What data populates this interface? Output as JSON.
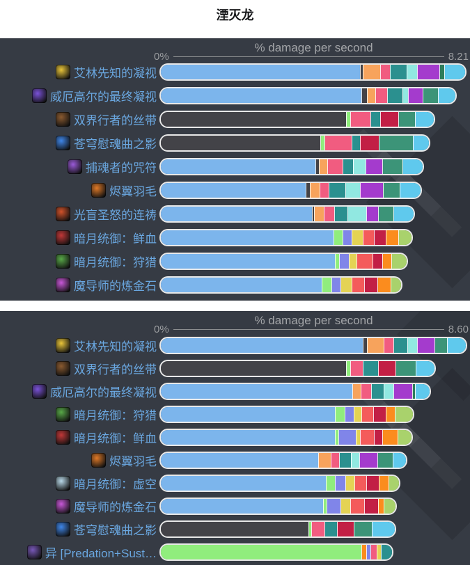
{
  "page": {
    "title": "湮灭龙"
  },
  "colors": {
    "panel_bg": "#363b44",
    "label_blue": "#6aa7e0",
    "axis_gray": "#9b9da0",
    "bar_border": "#e8e8e8",
    "title_color": "#17181a"
  },
  "palette": {
    "blue": "#7cb5ec",
    "dark": "#434348",
    "lgreen": "#90ed7d",
    "orange": "#f7a35c",
    "peri": "#8085e9",
    "pink": "#f15c80",
    "yellow": "#e4d354",
    "teal": "#2b908f",
    "salmon": "#f45b5b",
    "aqua": "#91e8e1",
    "purple": "#a43bcd",
    "forest": "#2e7d5b",
    "seagreen": "#3c9478",
    "crimson": "#c21f45",
    "borange": "#fb8c1e",
    "ygreen": "#a9d26c",
    "cyan": "#5fc9ed"
  },
  "chart_data": [
    {
      "type": "bar",
      "orientation": "horizontal-stacked",
      "title": "% damage per second",
      "axis_min": "0%",
      "axis_max": "8.21",
      "xlim": [
        0,
        8.21
      ],
      "legend": false,
      "rows": [
        {
          "label": "艾林先知的凝视",
          "icon": "seer-gaze",
          "icon_color": "#e9c53a",
          "value": 8.21,
          "segments": [
            [
              "blue",
              66.0
            ],
            [
              "dark",
              0.7
            ],
            [
              "orange",
              5.7
            ],
            [
              "pink",
              2.9
            ],
            [
              "teal",
              5.3
            ],
            [
              "aqua",
              3.2
            ],
            [
              "purple",
              7.2
            ],
            [
              "forest",
              1.4
            ],
            [
              "cyan",
              6.6
            ]
          ]
        },
        {
          "label": "威厄高尔的最终凝视",
          "icon": "vexgor-final-gaze",
          "icon_color": "#7a52d8",
          "value": 7.9,
          "segments": [
            [
              "blue",
              66.5
            ],
            [
              "dark",
              1.6
            ],
            [
              "orange",
              2.6
            ],
            [
              "pink",
              3.8
            ],
            [
              "teal",
              4.8
            ],
            [
              "aqua",
              1.5
            ],
            [
              "purple",
              4.8
            ],
            [
              "seagreen",
              4.7
            ],
            [
              "cyan",
              5.6
            ]
          ]
        },
        {
          "label": "双界行者的丝带",
          "icon": "worldwalker-ribbon",
          "icon_color": "#8a5a30",
          "value": 7.36,
          "segments": [
            [
              "dark",
              61.3
            ],
            [
              "lgreen",
              1.1
            ],
            [
              "pink",
              6.4
            ],
            [
              "teal",
              3.1
            ],
            [
              "crimson",
              5.6
            ],
            [
              "seagreen",
              5.4
            ],
            [
              "cyan",
              6.0
            ]
          ]
        },
        {
          "label": "苍穹慰魂曲之影",
          "icon": "requiem-shadow",
          "icon_color": "#3f86e8",
          "value": 7.18,
          "segments": [
            [
              "dark",
              52.8
            ],
            [
              "lgreen",
              1.2
            ],
            [
              "pink",
              8.6
            ],
            [
              "teal",
              2.5
            ],
            [
              "crimson",
              6.0
            ],
            [
              "seagreen",
              11.2
            ],
            [
              "cyan",
              5.0
            ]
          ]
        },
        {
          "label": "捕魂者的咒符",
          "icon": "soulcatcher-charm",
          "icon_color": "#9a5ad8",
          "value": 7.06,
          "segments": [
            [
              "blue",
              51.5
            ],
            [
              "dark",
              0.8
            ],
            [
              "orange",
              2.7
            ],
            [
              "pink",
              4.8
            ],
            [
              "teal",
              3.2
            ],
            [
              "aqua",
              3.9
            ],
            [
              "purple",
              5.4
            ],
            [
              "seagreen",
              6.4
            ],
            [
              "cyan",
              6.6
            ]
          ]
        },
        {
          "label": "烬翼羽毛",
          "icon": "emberwing-feather",
          "icon_color": "#e07a28",
          "value": 6.99,
          "segments": [
            [
              "blue",
              48.2
            ],
            [
              "dark",
              1.1
            ],
            [
              "orange",
              3.1
            ],
            [
              "pink",
              2.8
            ],
            [
              "teal",
              5.3
            ],
            [
              "aqua",
              4.7
            ],
            [
              "purple",
              7.3
            ],
            [
              "seagreen",
              5.3
            ],
            [
              "cyan",
              6.8
            ]
          ]
        },
        {
          "label": "光盲圣怒的连祷",
          "icon": "litany-of-wrath",
          "icon_color": "#d0522a",
          "value": 6.81,
          "segments": [
            [
              "blue",
              50.2
            ],
            [
              "dark",
              0.6
            ],
            [
              "orange",
              3.0
            ],
            [
              "pink",
              3.3
            ],
            [
              "teal",
              4.1
            ],
            [
              "aqua",
              6.1
            ],
            [
              "purple",
              3.7
            ],
            [
              "seagreen",
              4.9
            ],
            [
              "cyan",
              6.4
            ]
          ]
        },
        {
          "label": "暗月统御：鲜血",
          "icon": "darkmoon-blood",
          "icon_color": "#c03838",
          "value": 6.78,
          "segments": [
            [
              "blue",
              57.4
            ],
            [
              "lgreen",
              2.7
            ],
            [
              "peri",
              2.7
            ],
            [
              "yellow",
              3.6
            ],
            [
              "salmon",
              3.4
            ],
            [
              "crimson",
              3.8
            ],
            [
              "borange",
              3.8
            ],
            [
              "ygreen",
              4.3
            ]
          ]
        },
        {
          "label": "暗月统御：狩猎",
          "icon": "darkmoon-hunt",
          "icon_color": "#58a848",
          "value": 6.7,
          "segments": [
            [
              "blue",
              57.8
            ],
            [
              "lgreen",
              1.2
            ],
            [
              "peri",
              3.1
            ],
            [
              "yellow",
              2.3
            ],
            [
              "salmon",
              5.1
            ],
            [
              "crimson",
              2.9
            ],
            [
              "borange",
              2.9
            ],
            [
              "ygreen",
              4.8
            ]
          ]
        },
        {
          "label": "魔导师的炼金石",
          "icon": "alchemist-stone",
          "icon_color": "#c858d8",
          "value": 6.49,
          "segments": [
            [
              "blue",
              53.4
            ],
            [
              "lgreen",
              3.1
            ],
            [
              "peri",
              2.8
            ],
            [
              "yellow",
              3.4
            ],
            [
              "salmon",
              3.9
            ],
            [
              "crimson",
              4.2
            ],
            [
              "borange",
              4.2
            ],
            [
              "ygreen",
              3.2
            ]
          ]
        }
      ]
    },
    {
      "type": "bar",
      "orientation": "horizontal-stacked",
      "title": "% damage per second",
      "axis_min": "0%",
      "axis_max": "8.60",
      "xlim": [
        0,
        8.6
      ],
      "legend": false,
      "rows": [
        {
          "label": "艾林先知的凝视",
          "icon": "seer-gaze",
          "icon_color": "#e9c53a",
          "value": 8.6,
          "segments": [
            [
              "blue",
              67.0
            ],
            [
              "dark",
              1.1
            ],
            [
              "orange",
              5.4
            ],
            [
              "pink",
              3.0
            ],
            [
              "teal",
              4.3
            ],
            [
              "aqua",
              3.1
            ],
            [
              "purple",
              5.5
            ],
            [
              "seagreen",
              3.9
            ],
            [
              "cyan",
              6.0
            ]
          ]
        },
        {
          "label": "双界行者的丝带",
          "icon": "worldwalker-ribbon",
          "icon_color": "#8a5a30",
          "value": 7.73,
          "segments": [
            [
              "dark",
              61.2
            ],
            [
              "lgreen",
              1.2
            ],
            [
              "pink",
              4.0
            ],
            [
              "teal",
              4.8
            ],
            [
              "crimson",
              5.4
            ],
            [
              "seagreen",
              6.5
            ],
            [
              "cyan",
              6.0
            ]
          ]
        },
        {
          "label": "威厄高尔的最终凝视",
          "icon": "vexgor-final-gaze",
          "icon_color": "#7a52d8",
          "value": 7.6,
          "segments": [
            [
              "blue",
              63.6
            ],
            [
              "orange",
              2.4
            ],
            [
              "pink",
              3.3
            ],
            [
              "teal",
              3.8
            ],
            [
              "aqua",
              3.0
            ],
            [
              "purple",
              6.0
            ],
            [
              "forest",
              0.9
            ],
            [
              "cyan",
              4.6
            ]
          ]
        },
        {
          "label": "暗月统御：狩猎",
          "icon": "darkmoon-hunt",
          "icon_color": "#58a848",
          "value": 7.14,
          "segments": [
            [
              "blue",
              57.9
            ],
            [
              "lgreen",
              2.8
            ],
            [
              "peri",
              3.0
            ],
            [
              "yellow",
              2.1
            ],
            [
              "salmon",
              3.7
            ],
            [
              "crimson",
              4.0
            ],
            [
              "borange",
              2.8
            ],
            [
              "ygreen",
              5.7
            ]
          ]
        },
        {
          "label": "暗月统御：鲜血",
          "icon": "darkmoon-blood",
          "icon_color": "#c03838",
          "value": 7.06,
          "segments": [
            [
              "blue",
              57.9
            ],
            [
              "lgreen",
              0.9
            ],
            [
              "peri",
              5.5
            ],
            [
              "yellow",
              1.1
            ],
            [
              "salmon",
              4.4
            ],
            [
              "crimson",
              2.5
            ],
            [
              "borange",
              5.0
            ],
            [
              "ygreen",
              4.4
            ]
          ]
        },
        {
          "label": "烬翼羽毛",
          "icon": "emberwing-feather",
          "icon_color": "#e07a28",
          "value": 6.95,
          "segments": [
            [
              "blue",
              52.2
            ],
            [
              "orange",
              4.0
            ],
            [
              "pink",
              2.5
            ],
            [
              "teal",
              3.7
            ],
            [
              "aqua",
              2.6
            ],
            [
              "purple",
              5.9
            ],
            [
              "seagreen",
              4.8
            ],
            [
              "cyan",
              4.2
            ]
          ]
        },
        {
          "label": "暗月统御：虚空",
          "icon": "darkmoon-void",
          "icon_color": "#b8d8e8",
          "value": 6.73,
          "segments": [
            [
              "blue",
              54.8
            ],
            [
              "lgreen",
              2.9
            ],
            [
              "peri",
              3.1
            ],
            [
              "yellow",
              2.9
            ],
            [
              "salmon",
              3.7
            ],
            [
              "crimson",
              4.0
            ],
            [
              "borange",
              2.8
            ],
            [
              "ygreen",
              3.4
            ]
          ]
        },
        {
          "label": "魔导师的炼金石",
          "icon": "alchemist-stone",
          "icon_color": "#c858d8",
          "value": 6.71,
          "segments": [
            [
              "blue",
              54.0
            ],
            [
              "lgreen",
              0.9
            ],
            [
              "peri",
              4.4
            ],
            [
              "yellow",
              3.1
            ],
            [
              "salmon",
              4.4
            ],
            [
              "crimson",
              4.2
            ],
            [
              "borange",
              1.7
            ],
            [
              "ygreen",
              3.7
            ]
          ]
        },
        {
          "label": "苍穹慰魂曲之影",
          "icon": "requiem-shadow",
          "icon_color": "#3f86e8",
          "value": 6.67,
          "segments": [
            [
              "dark",
              48.9
            ],
            [
              "lgreen",
              0.8
            ],
            [
              "pink",
              4.0
            ],
            [
              "teal",
              4.0
            ],
            [
              "crimson",
              5.4
            ],
            [
              "seagreen",
              5.8
            ],
            [
              "cyan",
              7.2
            ]
          ]
        },
        {
          "label": "异 [Predation+Sust…",
          "icon": "special-build",
          "icon_color": "#7858b8",
          "value": 6.56,
          "segments": [
            [
              "lgreen",
              66.3
            ],
            [
              "borange",
              1.4
            ],
            [
              "peri",
              1.2
            ],
            [
              "pink",
              1.8
            ],
            [
              "yellow",
              1.1
            ],
            [
              "teal",
              3.5
            ]
          ]
        }
      ]
    }
  ]
}
